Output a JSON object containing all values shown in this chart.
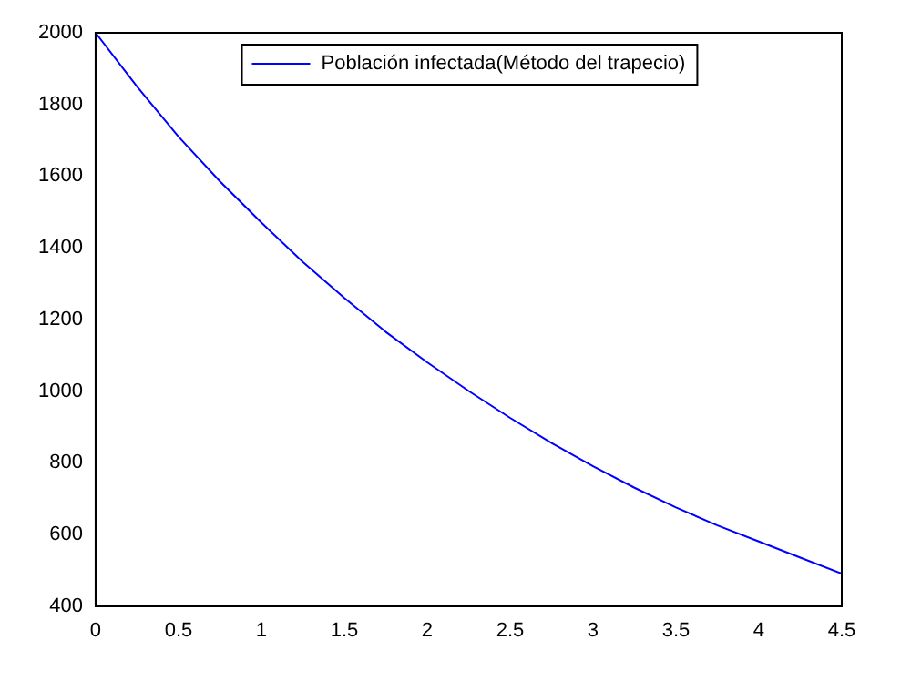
{
  "chart_data": {
    "type": "line",
    "x": [
      0,
      0.25,
      0.5,
      0.75,
      1,
      1.25,
      1.5,
      1.75,
      2,
      2.25,
      2.5,
      2.75,
      3,
      3.25,
      3.5,
      3.75,
      4,
      4.25,
      4.5
    ],
    "series": [
      {
        "name": "Población infectada(Método del trapecio)",
        "color": "#0000ff",
        "values": [
          2000,
          1850,
          1710,
          1585,
          1470,
          1360,
          1260,
          1165,
          1080,
          1000,
          925,
          855,
          790,
          730,
          675,
          625,
          580,
          535,
          490
        ]
      }
    ],
    "xlim": [
      0,
      4.5
    ],
    "xticks": [
      0,
      0.5,
      1,
      1.5,
      2,
      2.5,
      3,
      3.5,
      4,
      4.5
    ],
    "ylim": [
      400,
      2000
    ],
    "yticks": [
      400,
      600,
      800,
      1000,
      1200,
      1400,
      1600,
      1800,
      2000
    ],
    "grid": false,
    "legend": "top",
    "marker": "none",
    "line_style": "solid"
  }
}
